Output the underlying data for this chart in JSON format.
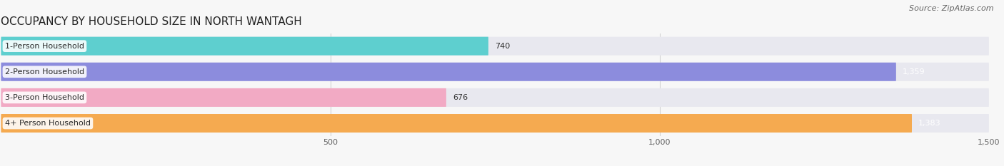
{
  "title": "OCCUPANCY BY HOUSEHOLD SIZE IN NORTH WANTAGH",
  "source": "Source: ZipAtlas.com",
  "categories": [
    "1-Person Household",
    "2-Person Household",
    "3-Person Household",
    "4+ Person Household"
  ],
  "values": [
    740,
    1359,
    676,
    1383
  ],
  "bar_colors": [
    "#5ecfcf",
    "#8c8cdd",
    "#f2aac4",
    "#f5aa50"
  ],
  "bar_bg_color": "#e8e8ef",
  "xlim_max": 1500,
  "xticks": [
    500,
    1000,
    1500
  ],
  "value_label_colors": [
    "#333333",
    "#ffffff",
    "#333333",
    "#ffffff"
  ],
  "title_fontsize": 11,
  "source_fontsize": 8,
  "bar_label_fontsize": 8,
  "value_label_fontsize": 8,
  "fig_bg": "#f7f7f7",
  "bar_bg_lightgray": "#ebebf0"
}
